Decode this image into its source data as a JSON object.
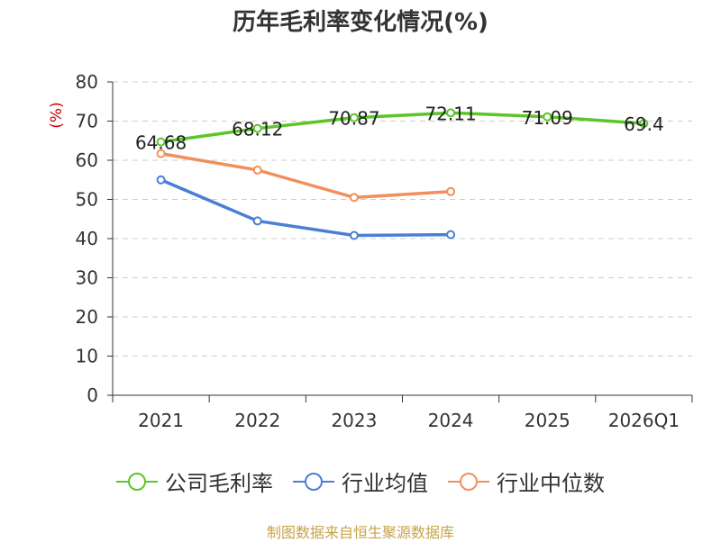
{
  "chart_data": {
    "type": "line",
    "title": "历年毛利率变化情况(%)",
    "ylabel": "(%)",
    "xlabel": "",
    "categories": [
      "2021",
      "2022",
      "2023",
      "2024",
      "2025",
      "2026Q1"
    ],
    "ylim": [
      0,
      80
    ],
    "yticks": [
      0,
      10,
      20,
      30,
      40,
      50,
      60,
      70,
      80
    ],
    "grid": true,
    "legend_position": "bottom",
    "series": [
      {
        "name": "公司毛利率",
        "color": "#5cc528",
        "values": [
          64.68,
          68.12,
          70.87,
          72.11,
          71.09,
          69.4
        ],
        "labels": [
          "64.68",
          "68.12",
          "70.87",
          "72.11",
          "71.09",
          "69.4"
        ]
      },
      {
        "name": "行业均值",
        "color": "#4a7fd6",
        "values": [
          55.0,
          44.5,
          40.8,
          41.0,
          null,
          null
        ]
      },
      {
        "name": "行业中位数",
        "color": "#f28f5c",
        "values": [
          61.7,
          57.5,
          50.5,
          52.0,
          null,
          null
        ]
      }
    ]
  },
  "source": "制图数据来自恒生聚源数据库"
}
